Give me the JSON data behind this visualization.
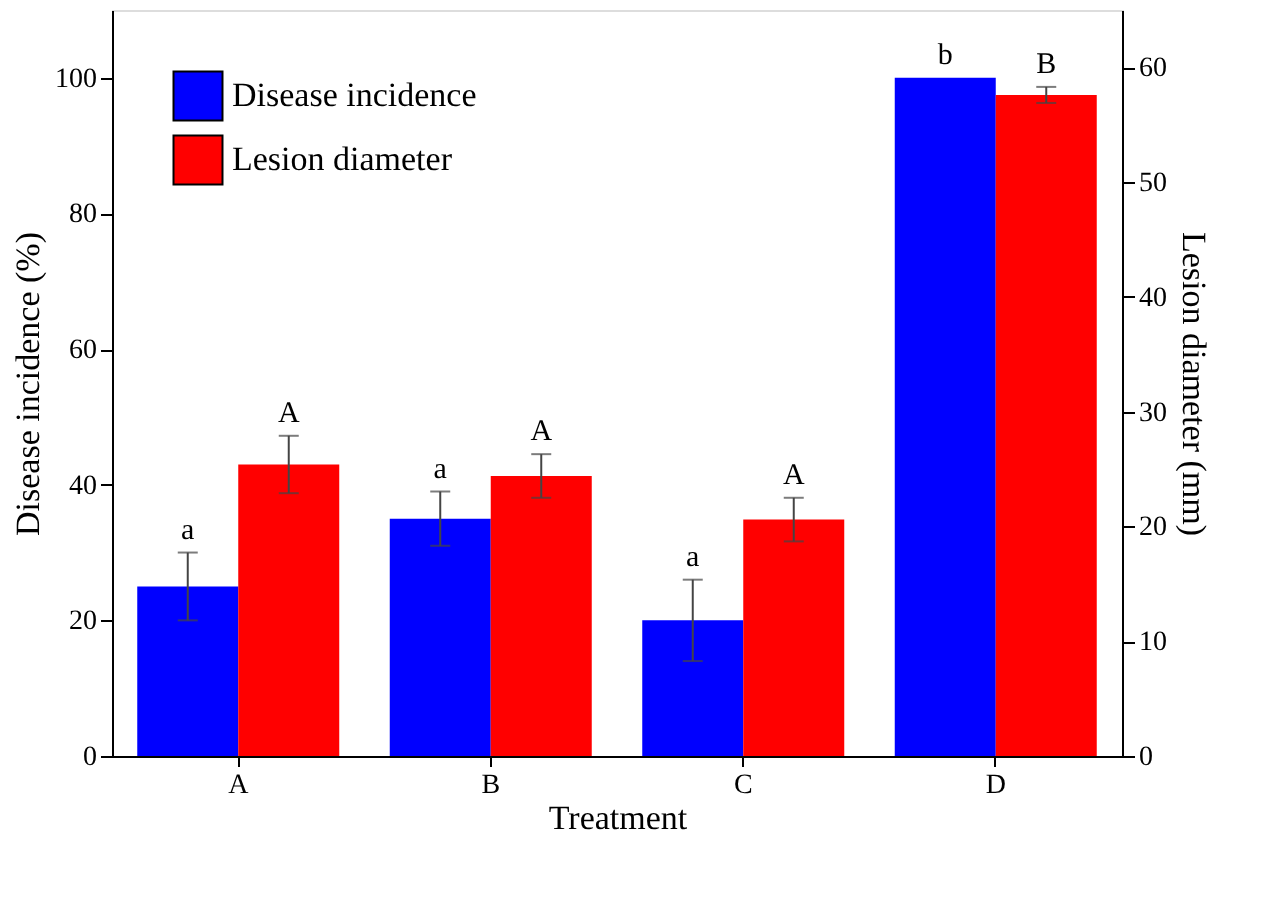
{
  "chart_data": {
    "type": "bar",
    "xlabel": "Treatment",
    "ylabel": "Disease incidence (%)",
    "y2label": "Lesion diameter (mm)",
    "categories": [
      "A",
      "B",
      "C",
      "D"
    ],
    "series": [
      {
        "name": "Disease incidence",
        "color": "#0000ff",
        "values": [
          25,
          35,
          20,
          100
        ],
        "errors": [
          5,
          4,
          6,
          null
        ],
        "value_labels": [
          "a",
          "a",
          "a",
          "b"
        ]
      },
      {
        "name": "Lesion diameter",
        "color": "#ff0000",
        "axis": "y2",
        "values": [
          25.4,
          24.4,
          20.6,
          57.6
        ],
        "errors": [
          2.5,
          1.9,
          1.9,
          0.7
        ],
        "value_labels": [
          "A",
          "A",
          "A",
          "B"
        ]
      }
    ],
    "ylim": [
      0,
      110
    ],
    "yticks": [
      0,
      20,
      40,
      60,
      80,
      100
    ],
    "y2lim": [
      0,
      65
    ],
    "y2ticks": [
      0,
      10,
      20,
      30,
      40,
      50,
      60
    ],
    "grid": false,
    "legend": "top left"
  }
}
